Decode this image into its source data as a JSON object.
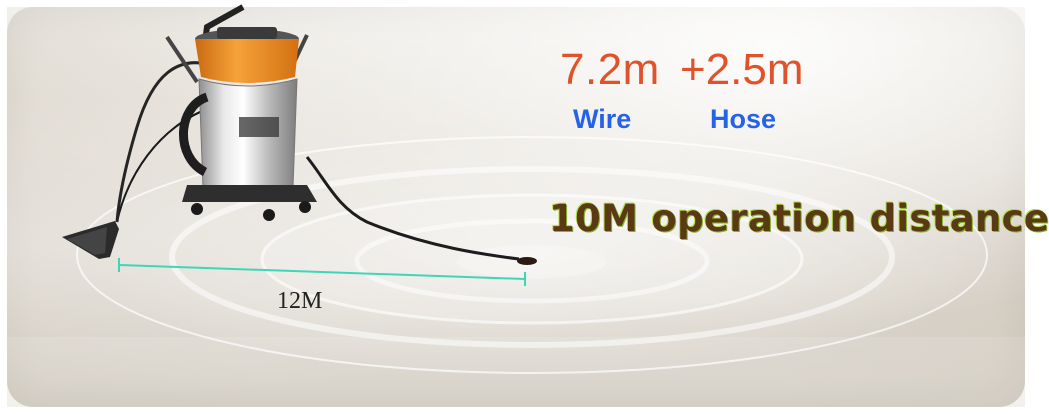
{
  "overlay_text": {
    "wire_length": "7.2m",
    "hose_length": "+2.5m",
    "wire_label": "Wire",
    "hose_label": "Hose",
    "operation_distance": "10M operation distance",
    "measurement_label": "12M"
  },
  "colors": {
    "length_text": "#e0532a",
    "label_text": "#2563e6",
    "operation_text": "#5a3a14",
    "measure_line": "#3fd6b8",
    "canister_orange": "#f08a1c",
    "canister_steel": "#c9c9c9"
  },
  "scene": {
    "subject": "stainless-steel wet/dry vacuum cleaner with orange lid on a floor",
    "illustration": "concentric white rings showing reach radius"
  }
}
